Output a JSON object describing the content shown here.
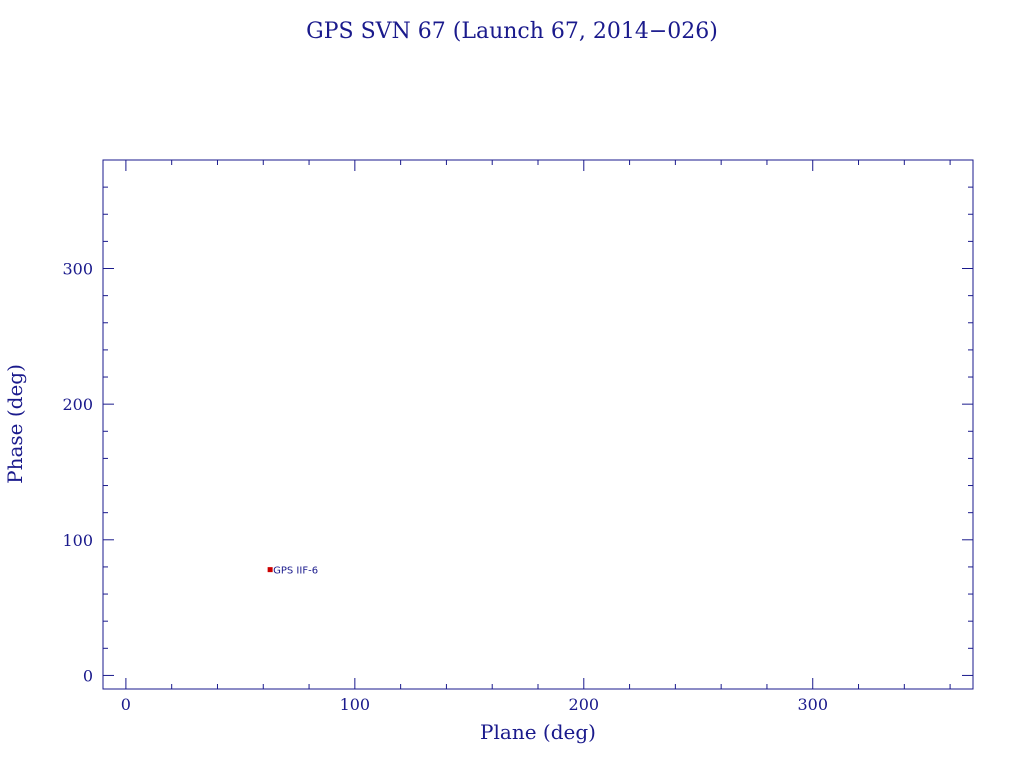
{
  "chart_data": {
    "type": "scatter",
    "title": "GPS SVN 67 (Launch 67, 2014−026)",
    "xlabel": "Plane (deg)",
    "ylabel": "Phase (deg)",
    "xlim": [
      -10,
      370
    ],
    "ylim": [
      -10,
      380
    ],
    "xticks": [
      0,
      100,
      200,
      300
    ],
    "yticks": [
      0,
      100,
      200,
      300
    ],
    "x_minor_step": 20,
    "y_minor_step": 20,
    "grid": false,
    "legend": "none",
    "points": [
      {
        "x": 63,
        "y": 78,
        "label": "GPS IIF-6"
      }
    ],
    "colors": {
      "axis": "#1a1a8c",
      "text": "#1a1a8c",
      "marker": "#cc0000"
    }
  }
}
